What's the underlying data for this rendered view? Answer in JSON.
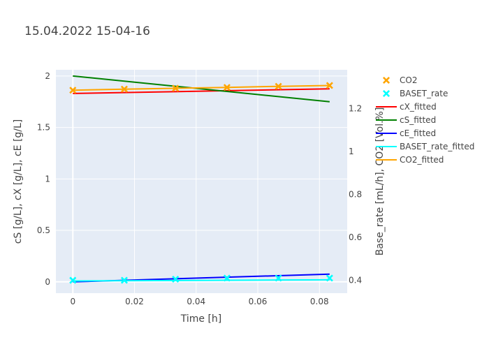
{
  "chart_data": {
    "type": "line",
    "title": "15.04.2022 15-04-16",
    "xlabel": "Time [h]",
    "ylabel_left": "cS [g/L], cX [g/L], cE [g/L]",
    "ylabel_right": "Base_rate [mL/h], CO2 [Vol.%]",
    "xlim": [
      -0.0055,
      0.089
    ],
    "ylim_left": [
      -0.11,
      2.06
    ],
    "ylim_right": [
      0.34,
      1.38
    ],
    "x_ticks": [
      0,
      0.02,
      0.04,
      0.06,
      0.08
    ],
    "x_tick_labels": [
      "0",
      "0.02",
      "0.04",
      "0.06",
      "0.08"
    ],
    "y_left_ticks": [
      0,
      0.5,
      1,
      1.5,
      2
    ],
    "y_left_tick_labels": [
      "0",
      "0.5",
      "1",
      "1.5",
      "2"
    ],
    "y_right_ticks": [
      0.4,
      0.6,
      0.8,
      1,
      1.2
    ],
    "y_right_tick_labels": [
      "0.4",
      "0.6",
      "0.8",
      "1",
      "1.2"
    ],
    "grid": true,
    "legend_position": "right",
    "series": [
      {
        "name": "CO2",
        "axis": "right",
        "mode": "markers",
        "color": "#FFA500",
        "x": [
          0,
          0.0167,
          0.0333,
          0.05,
          0.0667,
          0.0833
        ],
        "y": [
          1.285,
          1.29,
          1.294,
          1.298,
          1.303,
          1.307
        ]
      },
      {
        "name": "BASET_rate",
        "axis": "right",
        "mode": "markers",
        "color": "#00FFFF",
        "x": [
          0,
          0.0167,
          0.0333,
          0.05,
          0.0667,
          0.0833
        ],
        "y": [
          0.4,
          0.4,
          0.405,
          0.41,
          0.41,
          0.41
        ]
      },
      {
        "name": "cX_fitted",
        "axis": "left",
        "mode": "lines",
        "color": "#FF0000",
        "x": [
          0,
          0.0833
        ],
        "y": [
          1.83,
          1.875
        ]
      },
      {
        "name": "cS_fitted",
        "axis": "left",
        "mode": "lines",
        "color": "#008000",
        "x": [
          0,
          0.0833
        ],
        "y": [
          2.0,
          1.75
        ]
      },
      {
        "name": "cE_fitted",
        "axis": "left",
        "mode": "lines",
        "color": "#0000FF",
        "x": [
          0,
          0.0833
        ],
        "y": [
          0.0,
          0.075
        ]
      },
      {
        "name": "BASET_rate_fitted",
        "axis": "right",
        "mode": "lines",
        "color": "#00FFFF",
        "x": [
          0,
          0.0833
        ],
        "y": [
          0.397,
          0.402
        ]
      },
      {
        "name": "CO2_fitted",
        "axis": "right",
        "mode": "lines",
        "color": "#FFA500",
        "x": [
          0,
          0.0167,
          0.0333,
          0.05,
          0.0667,
          0.0833
        ],
        "y": [
          1.285,
          1.29,
          1.294,
          1.298,
          1.303,
          1.307
        ]
      }
    ]
  }
}
